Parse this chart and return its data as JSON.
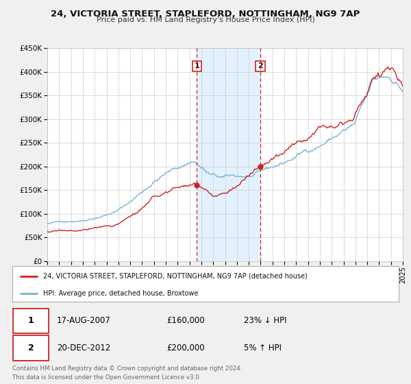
{
  "title": "24, VICTORIA STREET, STAPLEFORD, NOTTINGHAM, NG9 7AP",
  "subtitle": "Price paid vs. HM Land Registry's House Price Index (HPI)",
  "ylim": [
    0,
    450000
  ],
  "xlim": [
    1995,
    2025
  ],
  "yticks": [
    0,
    50000,
    100000,
    150000,
    200000,
    250000,
    300000,
    350000,
    400000,
    450000
  ],
  "ytick_labels": [
    "£0",
    "£50K",
    "£100K",
    "£150K",
    "£200K",
    "£250K",
    "£300K",
    "£350K",
    "£400K",
    "£450K"
  ],
  "xticks": [
    1995,
    1996,
    1997,
    1998,
    1999,
    2000,
    2001,
    2002,
    2003,
    2004,
    2005,
    2006,
    2007,
    2008,
    2009,
    2010,
    2011,
    2012,
    2013,
    2014,
    2015,
    2016,
    2017,
    2018,
    2019,
    2020,
    2021,
    2022,
    2023,
    2024,
    2025
  ],
  "fig_bg_color": "#f0f0f0",
  "plot_bg_color": "#ffffff",
  "grid_color": "#cccccc",
  "hpi_color": "#7ab0d4",
  "price_color": "#cc2222",
  "shade_color": "#ddeeff",
  "transaction1_x": 2007.63,
  "transaction1_y": 160000,
  "transaction2_x": 2012.97,
  "transaction2_y": 200000,
  "legend_line1": "24, VICTORIA STREET, STAPLEFORD, NOTTINGHAM, NG9 7AP (detached house)",
  "legend_line2": "HPI: Average price, detached house, Broxtowe",
  "transaction1_date": "17-AUG-2007",
  "transaction1_price": "£160,000",
  "transaction1_hpi": "23% ↓ HPI",
  "transaction2_date": "20-DEC-2012",
  "transaction2_price": "£200,000",
  "transaction2_hpi": "5% ↑ HPI",
  "footer1": "Contains HM Land Registry data © Crown copyright and database right 2024.",
  "footer2": "This data is licensed under the Open Government Licence v3.0."
}
